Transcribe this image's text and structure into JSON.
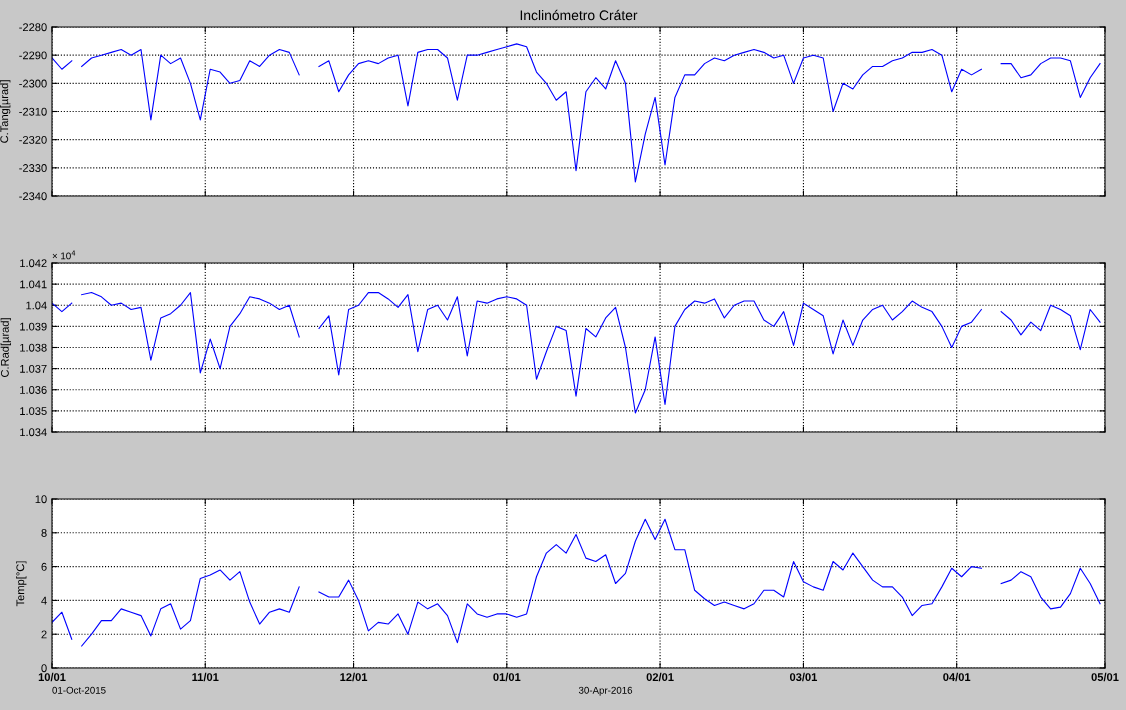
{
  "chart_data": [
    {
      "type": "line",
      "title": "Inclinómetro Cráter",
      "ylabel": "C.Tang[µrad]",
      "x": [
        "2015-10-01",
        "2015-10-03",
        "2015-10-05",
        "2015-10-06",
        "2015-10-07",
        "2015-10-09",
        "2015-10-11",
        "2015-10-13",
        "2015-10-15",
        "2015-10-17",
        "2015-10-19",
        "2015-10-21",
        "2015-10-23",
        "2015-10-25",
        "2015-10-27",
        "2015-10-29",
        "2015-10-31",
        "2015-11-02",
        "2015-11-04",
        "2015-11-06",
        "2015-11-08",
        "2015-11-10",
        "2015-11-12",
        "2015-11-14",
        "2015-11-16",
        "2015-11-18",
        "2015-11-20",
        "2015-11-22",
        "2015-11-24",
        "2015-11-26",
        "2015-11-28",
        "2015-11-30",
        "2015-12-02",
        "2015-12-04",
        "2015-12-06",
        "2015-12-08",
        "2015-12-10",
        "2015-12-12",
        "2015-12-14",
        "2015-12-16",
        "2015-12-18",
        "2015-12-20",
        "2015-12-22",
        "2015-12-24",
        "2015-12-26",
        "2015-12-28",
        "2015-12-30",
        "2016-01-01",
        "2016-01-03",
        "2016-01-05",
        "2016-01-07",
        "2016-01-09",
        "2016-01-11",
        "2016-01-13",
        "2016-01-15",
        "2016-01-17",
        "2016-01-19",
        "2016-01-21",
        "2016-01-23",
        "2016-01-25",
        "2016-01-27",
        "2016-01-29",
        "2016-01-31",
        "2016-02-02",
        "2016-02-04",
        "2016-02-06",
        "2016-02-08",
        "2016-02-10",
        "2016-02-12",
        "2016-02-14",
        "2016-02-16",
        "2016-02-18",
        "2016-02-20",
        "2016-02-22",
        "2016-02-24",
        "2016-02-26",
        "2016-02-28",
        "2016-03-01",
        "2016-03-03",
        "2016-03-05",
        "2016-03-07",
        "2016-03-09",
        "2016-03-11",
        "2016-03-13",
        "2016-03-15",
        "2016-03-17",
        "2016-03-19",
        "2016-03-21",
        "2016-03-23",
        "2016-03-25",
        "2016-03-27",
        "2016-03-29",
        "2016-03-31",
        "2016-04-02",
        "2016-04-04",
        "2016-04-06",
        "2016-04-08",
        "2016-04-10",
        "2016-04-12",
        "2016-04-14",
        "2016-04-16",
        "2016-04-18",
        "2016-04-20",
        "2016-04-22",
        "2016-04-24",
        "2016-04-26",
        "2016-04-28",
        "2016-04-30"
      ],
      "series": [
        {
          "color": "#0000ff",
          "values": [
            -2291,
            -2295,
            -2292,
            null,
            -2294,
            -2291,
            -2290,
            -2289,
            -2288,
            -2290,
            -2288,
            -2313,
            -2290,
            -2293,
            -2291,
            -2300,
            -2313,
            -2295,
            -2296,
            -2300,
            -2299,
            -2292,
            -2294,
            -2290,
            -2288,
            -2289,
            -2297,
            null,
            -2294,
            -2292,
            -2303,
            -2297,
            -2293,
            -2292,
            -2293,
            -2291,
            -2290,
            -2308,
            -2289,
            -2288,
            -2288,
            -2291,
            -2306,
            -2290,
            -2290,
            -2289,
            -2288,
            -2287,
            -2286,
            -2287,
            -2296,
            -2300,
            -2306,
            -2303,
            -2331,
            -2303,
            -2298,
            -2302,
            -2292,
            -2300,
            -2335,
            -2318,
            -2305,
            -2329,
            -2305,
            -2297,
            -2297,
            -2293,
            -2291,
            -2292,
            -2290,
            -2289,
            -2288,
            -2289,
            -2291,
            -2290,
            -2300,
            -2291,
            -2290,
            -2291,
            -2310,
            -2300,
            -2302,
            -2297,
            -2294,
            -2294,
            -2292,
            -2291,
            -2289,
            -2289,
            -2288,
            -2290,
            -2303,
            -2295,
            -2297,
            -2295,
            null,
            -2293,
            -2293,
            -2298,
            -2297,
            -2293,
            -2291,
            -2291,
            -2292,
            -2305,
            -2298,
            -2293
          ]
        }
      ],
      "xlim": [
        "2015-10-01",
        "2016-05-01"
      ],
      "xticks": [
        {
          "value": "2015-10-01",
          "label": null
        },
        {
          "value": "2015-11-01",
          "label": null
        },
        {
          "value": "2015-12-01",
          "label": null
        },
        {
          "value": "2016-01-01",
          "label": null
        },
        {
          "value": "2016-02-01",
          "label": null
        },
        {
          "value": "2016-03-01",
          "label": null
        },
        {
          "value": "2016-04-01",
          "label": null
        },
        {
          "value": "2016-05-01",
          "label": null
        }
      ],
      "ylim": [
        -2340,
        -2280
      ],
      "yticks": [
        -2340,
        -2330,
        -2320,
        -2310,
        -2300,
        -2290,
        -2280
      ],
      "grid": true,
      "tick_labels": "y",
      "line_style": "solid"
    },
    {
      "type": "line",
      "ylabel": "C.Rad[µrad]",
      "annotations": [
        "× 10$^{4}$"
      ],
      "x": [
        "2015-10-01",
        "2015-10-03",
        "2015-10-05",
        "2015-10-06",
        "2015-10-07",
        "2015-10-09",
        "2015-10-11",
        "2015-10-13",
        "2015-10-15",
        "2015-10-17",
        "2015-10-19",
        "2015-10-21",
        "2015-10-23",
        "2015-10-25",
        "2015-10-27",
        "2015-10-29",
        "2015-10-31",
        "2015-11-02",
        "2015-11-04",
        "2015-11-06",
        "2015-11-08",
        "2015-11-10",
        "2015-11-12",
        "2015-11-14",
        "2015-11-16",
        "2015-11-18",
        "2015-11-20",
        "2015-11-22",
        "2015-11-24",
        "2015-11-26",
        "2015-11-28",
        "2015-11-30",
        "2015-12-02",
        "2015-12-04",
        "2015-12-06",
        "2015-12-08",
        "2015-12-10",
        "2015-12-12",
        "2015-12-14",
        "2015-12-16",
        "2015-12-18",
        "2015-12-20",
        "2015-12-22",
        "2015-12-24",
        "2015-12-26",
        "2015-12-28",
        "2015-12-30",
        "2016-01-01",
        "2016-01-03",
        "2016-01-05",
        "2016-01-07",
        "2016-01-09",
        "2016-01-11",
        "2016-01-13",
        "2016-01-15",
        "2016-01-17",
        "2016-01-19",
        "2016-01-21",
        "2016-01-23",
        "2016-01-25",
        "2016-01-27",
        "2016-01-29",
        "2016-01-31",
        "2016-02-02",
        "2016-02-04",
        "2016-02-06",
        "2016-02-08",
        "2016-02-10",
        "2016-02-12",
        "2016-02-14",
        "2016-02-16",
        "2016-02-18",
        "2016-02-20",
        "2016-02-22",
        "2016-02-24",
        "2016-02-26",
        "2016-02-28",
        "2016-03-01",
        "2016-03-03",
        "2016-03-05",
        "2016-03-07",
        "2016-03-09",
        "2016-03-11",
        "2016-03-13",
        "2016-03-15",
        "2016-03-17",
        "2016-03-19",
        "2016-03-21",
        "2016-03-23",
        "2016-03-25",
        "2016-03-27",
        "2016-03-29",
        "2016-03-31",
        "2016-04-02",
        "2016-04-04",
        "2016-04-06",
        "2016-04-08",
        "2016-04-10",
        "2016-04-12",
        "2016-04-14",
        "2016-04-16",
        "2016-04-18",
        "2016-04-20",
        "2016-04-22",
        "2016-04-24",
        "2016-04-26",
        "2016-04-28",
        "2016-04-30"
      ],
      "series": [
        {
          "color": "#0000ff",
          "values": [
            1.0401,
            1.0397,
            1.0401,
            null,
            1.0405,
            1.0406,
            1.0404,
            1.04,
            1.0401,
            1.0398,
            1.0399,
            1.0374,
            1.0394,
            1.0396,
            1.04,
            1.0406,
            1.0368,
            1.0384,
            1.037,
            1.039,
            1.0396,
            1.0404,
            1.0403,
            1.0401,
            1.0398,
            1.04,
            1.0385,
            null,
            1.0389,
            1.0395,
            1.0367,
            1.0398,
            1.04,
            1.0406,
            1.0406,
            1.0403,
            1.0399,
            1.0405,
            1.0378,
            1.0398,
            1.04,
            1.0393,
            1.0404,
            1.0376,
            1.0402,
            1.0401,
            1.0403,
            1.0404,
            1.0403,
            1.04,
            1.0365,
            1.0378,
            1.039,
            1.0388,
            1.0357,
            1.0389,
            1.0385,
            1.0394,
            1.0399,
            1.038,
            1.0349,
            1.036,
            1.0385,
            1.0353,
            1.039,
            1.0398,
            1.0402,
            1.0401,
            1.0403,
            1.0394,
            1.04,
            1.0402,
            1.0402,
            1.0393,
            1.039,
            1.0397,
            1.0381,
            1.0401,
            1.0398,
            1.0395,
            1.0377,
            1.0393,
            1.0381,
            1.0393,
            1.0398,
            1.04,
            1.0393,
            1.0397,
            1.0402,
            1.0399,
            1.0397,
            1.039,
            1.038,
            1.039,
            1.0392,
            1.0398,
            null,
            1.0397,
            1.0393,
            1.0386,
            1.0392,
            1.0388,
            1.04,
            1.0398,
            1.0395,
            1.0379,
            1.0398,
            1.0392
          ]
        }
      ],
      "xlim": [
        "2015-10-01",
        "2016-05-01"
      ],
      "xticks": [
        {
          "value": "2015-10-01",
          "label": null
        },
        {
          "value": "2015-11-01",
          "label": null
        },
        {
          "value": "2015-12-01",
          "label": null
        },
        {
          "value": "2016-01-01",
          "label": null
        },
        {
          "value": "2016-02-01",
          "label": null
        },
        {
          "value": "2016-03-01",
          "label": null
        },
        {
          "value": "2016-04-01",
          "label": null
        },
        {
          "value": "2016-05-01",
          "label": null
        }
      ],
      "ylim": [
        1.034,
        1.042
      ],
      "yticks": [
        1.034,
        1.035,
        1.036,
        1.037,
        1.038,
        1.039,
        1.04,
        1.041,
        1.042
      ],
      "grid": true,
      "tick_labels": "y",
      "line_style": "solid"
    },
    {
      "type": "line",
      "ylabel": "Temp[°C]",
      "annotations": [
        "01-Oct-2015",
        "30-Apr-2016"
      ],
      "x": [
        "2015-10-01",
        "2015-10-03",
        "2015-10-05",
        "2015-10-06",
        "2015-10-07",
        "2015-10-09",
        "2015-10-11",
        "2015-10-13",
        "2015-10-15",
        "2015-10-17",
        "2015-10-19",
        "2015-10-21",
        "2015-10-23",
        "2015-10-25",
        "2015-10-27",
        "2015-10-29",
        "2015-10-31",
        "2015-11-02",
        "2015-11-04",
        "2015-11-06",
        "2015-11-08",
        "2015-11-10",
        "2015-11-12",
        "2015-11-14",
        "2015-11-16",
        "2015-11-18",
        "2015-11-20",
        "2015-11-22",
        "2015-11-24",
        "2015-11-26",
        "2015-11-28",
        "2015-11-30",
        "2015-12-02",
        "2015-12-04",
        "2015-12-06",
        "2015-12-08",
        "2015-12-10",
        "2015-12-12",
        "2015-12-14",
        "2015-12-16",
        "2015-12-18",
        "2015-12-20",
        "2015-12-22",
        "2015-12-24",
        "2015-12-26",
        "2015-12-28",
        "2015-12-30",
        "2016-01-01",
        "2016-01-03",
        "2016-01-05",
        "2016-01-07",
        "2016-01-09",
        "2016-01-11",
        "2016-01-13",
        "2016-01-15",
        "2016-01-17",
        "2016-01-19",
        "2016-01-21",
        "2016-01-23",
        "2016-01-25",
        "2016-01-27",
        "2016-01-29",
        "2016-01-31",
        "2016-02-02",
        "2016-02-04",
        "2016-02-06",
        "2016-02-08",
        "2016-02-10",
        "2016-02-12",
        "2016-02-14",
        "2016-02-16",
        "2016-02-18",
        "2016-02-20",
        "2016-02-22",
        "2016-02-24",
        "2016-02-26",
        "2016-02-28",
        "2016-03-01",
        "2016-03-03",
        "2016-03-05",
        "2016-03-07",
        "2016-03-09",
        "2016-03-11",
        "2016-03-13",
        "2016-03-15",
        "2016-03-17",
        "2016-03-19",
        "2016-03-21",
        "2016-03-23",
        "2016-03-25",
        "2016-03-27",
        "2016-03-29",
        "2016-03-31",
        "2016-04-02",
        "2016-04-04",
        "2016-04-06",
        "2016-04-08",
        "2016-04-10",
        "2016-04-12",
        "2016-04-14",
        "2016-04-16",
        "2016-04-18",
        "2016-04-20",
        "2016-04-22",
        "2016-04-24",
        "2016-04-26",
        "2016-04-28",
        "2016-04-30"
      ],
      "series": [
        {
          "color": "#0000ff",
          "values": [
            2.7,
            3.3,
            1.7,
            null,
            1.3,
            2.0,
            2.8,
            2.8,
            3.5,
            3.3,
            3.1,
            1.9,
            3.5,
            3.8,
            2.3,
            2.8,
            5.3,
            5.5,
            5.8,
            5.2,
            5.7,
            3.9,
            2.6,
            3.3,
            3.5,
            3.3,
            4.8,
            null,
            4.5,
            4.2,
            4.2,
            5.2,
            4.0,
            2.2,
            2.7,
            2.6,
            3.2,
            2.0,
            3.9,
            3.5,
            3.8,
            3.1,
            1.5,
            3.8,
            3.2,
            3.0,
            3.2,
            3.2,
            3.0,
            3.2,
            5.4,
            6.8,
            7.3,
            6.8,
            7.9,
            6.5,
            6.3,
            6.7,
            5.0,
            5.6,
            7.5,
            8.8,
            7.6,
            8.8,
            7.0,
            7.0,
            4.6,
            4.1,
            3.7,
            3.9,
            3.7,
            3.5,
            3.8,
            4.6,
            4.6,
            4.2,
            6.3,
            5.1,
            4.8,
            4.6,
            6.3,
            5.8,
            6.8,
            6.0,
            5.2,
            4.8,
            4.8,
            4.2,
            3.1,
            3.7,
            3.8,
            4.8,
            5.9,
            5.4,
            6.0,
            5.9,
            null,
            5.0,
            5.2,
            5.7,
            5.4,
            4.2,
            3.5,
            3.6,
            4.4,
            5.9,
            5.0,
            3.8
          ]
        }
      ],
      "xlim": [
        "2015-10-01",
        "2016-05-01"
      ],
      "xticks": [
        {
          "value": "2015-10-01",
          "label": "10/01"
        },
        {
          "value": "2015-11-01",
          "label": "11/01"
        },
        {
          "value": "2015-12-01",
          "label": "12/01"
        },
        {
          "value": "2016-01-01",
          "label": "01/01"
        },
        {
          "value": "2016-02-01",
          "label": "02/01"
        },
        {
          "value": "2016-03-01",
          "label": "03/01"
        },
        {
          "value": "2016-04-01",
          "label": "04/01"
        },
        {
          "value": "2016-05-01",
          "label": "05/01"
        }
      ],
      "ylim": [
        0,
        10
      ],
      "yticks": [
        0,
        2,
        4,
        6,
        8,
        10
      ],
      "grid": true,
      "line_style": "solid"
    }
  ]
}
